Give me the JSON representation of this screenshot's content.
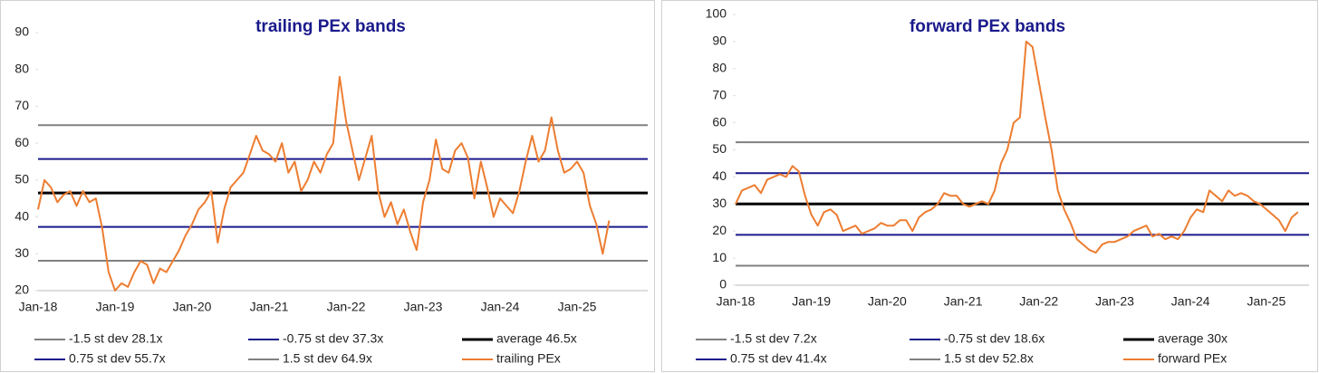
{
  "chart_data": [
    {
      "type": "line",
      "title": "trailing PEx bands",
      "categories": [
        "Jan-18",
        null,
        null,
        null,
        null,
        null,
        null,
        null,
        null,
        null,
        null,
        null,
        "Jan-19",
        null,
        null,
        null,
        null,
        null,
        null,
        null,
        null,
        null,
        null,
        null,
        "Jan-20",
        null,
        null,
        null,
        null,
        null,
        null,
        null,
        null,
        null,
        null,
        null,
        "Jan-21",
        null,
        null,
        null,
        null,
        null,
        null,
        null,
        null,
        null,
        null,
        null,
        "Jan-22",
        null,
        null,
        null,
        null,
        null,
        null,
        null,
        null,
        null,
        null,
        null,
        "Jan-23",
        null,
        null,
        null,
        null,
        null,
        null,
        null,
        null,
        null,
        null,
        null,
        "Jan-24",
        null,
        null,
        null,
        null,
        null,
        null,
        null,
        null,
        null,
        null,
        null,
        "Jan-25",
        null,
        null,
        null,
        null,
        null
      ],
      "ylim": [
        20,
        90
      ],
      "yticks": [
        20,
        30,
        40,
        50,
        60,
        70,
        80,
        90
      ],
      "bands": [
        {
          "name": "-1.5 st dev 28.1x",
          "color": "#808080",
          "value": 28.1
        },
        {
          "name": "-0.75 st dev 37.3x",
          "color": "#1a1a8c",
          "value": 37.3
        },
        {
          "name": "average 46.5x",
          "color": "#000000",
          "value": 46.5
        },
        {
          "name": "0.75 st dev 55.7x",
          "color": "#1a1a8c",
          "value": 55.7
        },
        {
          "name": "1.5 st dev 64.9x",
          "color": "#808080",
          "value": 64.9
        }
      ],
      "series": [
        {
          "name": "trailing PEx",
          "color": "#ed7d31",
          "values": [
            42,
            50,
            48,
            44,
            46,
            47,
            43,
            47,
            44,
            45,
            37,
            25,
            20,
            22,
            21,
            25,
            28,
            27,
            22,
            26,
            25,
            28,
            31,
            35,
            38,
            42,
            44,
            47,
            33,
            42,
            48,
            50,
            52,
            57,
            62,
            58,
            57,
            55,
            60,
            52,
            55,
            47,
            50,
            55,
            52,
            57,
            60,
            78,
            66,
            58,
            50,
            56,
            62,
            47,
            40,
            44,
            38,
            42,
            36,
            31,
            44,
            50,
            61,
            53,
            52,
            58,
            60,
            56,
            45,
            55,
            48,
            40,
            45,
            43,
            41,
            47,
            55,
            62,
            55,
            58,
            67,
            58,
            52,
            53,
            55,
            52,
            43,
            38,
            30,
            39
          ]
        }
      ]
    },
    {
      "type": "line",
      "title": "forward PEx bands",
      "categories": [
        "Jan-18",
        null,
        null,
        null,
        null,
        null,
        null,
        null,
        null,
        null,
        null,
        null,
        "Jan-19",
        null,
        null,
        null,
        null,
        null,
        null,
        null,
        null,
        null,
        null,
        null,
        "Jan-20",
        null,
        null,
        null,
        null,
        null,
        null,
        null,
        null,
        null,
        null,
        null,
        "Jan-21",
        null,
        null,
        null,
        null,
        null,
        null,
        null,
        null,
        null,
        null,
        null,
        "Jan-22",
        null,
        null,
        null,
        null,
        null,
        null,
        null,
        null,
        null,
        null,
        null,
        "Jan-23",
        null,
        null,
        null,
        null,
        null,
        null,
        null,
        null,
        null,
        null,
        null,
        "Jan-24",
        null,
        null,
        null,
        null,
        null,
        null,
        null,
        null,
        null,
        null,
        null,
        "Jan-25",
        null,
        null,
        null,
        null,
        null
      ],
      "ylim": [
        0,
        100
      ],
      "yticks": [
        0,
        10,
        20,
        30,
        40,
        50,
        60,
        70,
        80,
        90,
        100
      ],
      "bands": [
        {
          "name": "-1.5 st dev 7.2x",
          "color": "#808080",
          "value": 7.2
        },
        {
          "name": "-0.75 st dev 18.6x",
          "color": "#1a1a8c",
          "value": 18.6
        },
        {
          "name": "average 30x",
          "color": "#000000",
          "value": 30
        },
        {
          "name": "0.75 st dev 41.4x",
          "color": "#1a1a8c",
          "value": 41.4
        },
        {
          "name": "1.5 st dev 52.8x",
          "color": "#808080",
          "value": 52.8
        }
      ],
      "series": [
        {
          "name": "forward PEx",
          "color": "#ed7d31",
          "values": [
            30,
            35,
            36,
            37,
            34,
            39,
            40,
            41,
            40,
            44,
            42,
            33,
            26,
            22,
            27,
            28,
            26,
            20,
            21,
            22,
            19,
            20,
            21,
            23,
            22,
            22,
            24,
            24,
            20,
            25,
            27,
            28,
            30,
            34,
            33,
            33,
            30,
            29,
            30,
            31,
            30,
            35,
            45,
            50,
            60,
            62,
            90,
            88,
            75,
            62,
            50,
            35,
            28,
            23,
            17,
            15,
            13,
            12,
            15,
            16,
            16,
            17,
            18,
            20,
            21,
            22,
            18,
            19,
            17,
            18,
            17,
            20,
            25,
            28,
            27,
            35,
            33,
            31,
            35,
            33,
            34,
            33,
            31,
            30,
            28,
            26,
            24,
            20,
            25,
            27
          ]
        }
      ]
    }
  ]
}
